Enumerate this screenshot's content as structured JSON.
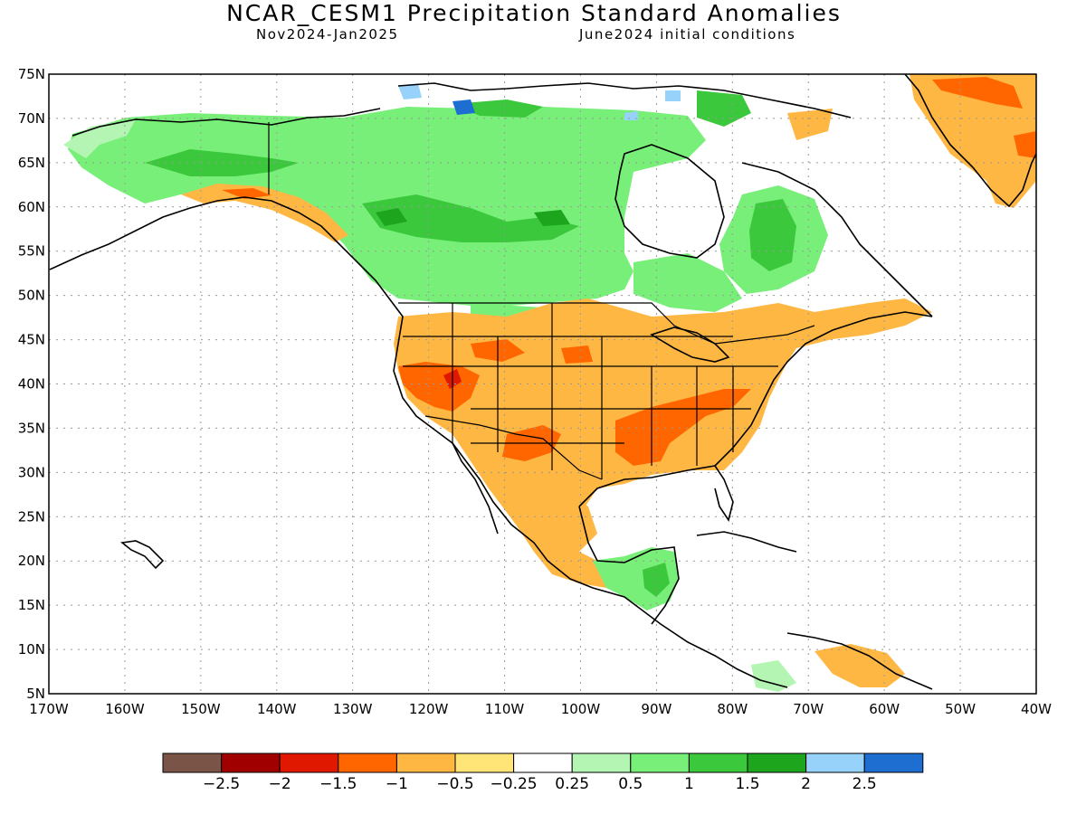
{
  "title": "NCAR_CESM1 Precipitation Standard Anomalies",
  "subtitle_period": "Nov2024-Jan2025",
  "subtitle_init": "June2024 initial conditions",
  "lat_ticks": [
    "75N",
    "70N",
    "65N",
    "60N",
    "55N",
    "50N",
    "45N",
    "40N",
    "35N",
    "30N",
    "25N",
    "20N",
    "15N",
    "10N",
    "5N"
  ],
  "lon_ticks": [
    "170W",
    "160W",
    "150W",
    "140W",
    "130W",
    "120W",
    "110W",
    "100W",
    "90W",
    "80W",
    "70W",
    "60W",
    "50W",
    "40W"
  ],
  "map_extent": {
    "lon": [
      -170,
      -40
    ],
    "lat": [
      5,
      75
    ]
  },
  "colorbar": {
    "labels": [
      "-2.5",
      "-2",
      "-1.5",
      "-1",
      "-0.5",
      "-0.25",
      "0.25",
      "0.5",
      "1",
      "1.5",
      "2",
      "2.5"
    ],
    "colors": [
      "#7a5446",
      "#a00000",
      "#e01800",
      "#ff6600",
      "#ffb744",
      "#ffe478",
      "#ffffff",
      "#b4f5b4",
      "#78ef78",
      "#3cc83c",
      "#1ea51e",
      "#96d2fa",
      "#1e6ed2"
    ]
  },
  "colors": {
    "dry_strong": "#e01800",
    "dry_moderate": "#ff6600",
    "dry_weak": "#ffb744",
    "dry_slight": "#ffe478",
    "wet_slight": "#b4f5b4",
    "wet_weak": "#78ef78",
    "wet_moderate": "#3cc83c",
    "wet_strong": "#1ea51e",
    "wet_blue": "#96d2fa",
    "wet_deepblue": "#1e6ed2"
  },
  "anomaly_regions": [
    {
      "name": "Alaska and northern Canada",
      "category": "wet_weak"
    },
    {
      "name": "Central Canada core",
      "category": "wet_moderate"
    },
    {
      "name": "Labrador / Quebec",
      "category": "wet_moderate"
    },
    {
      "name": "Canadian Arctic islands",
      "category": "wet_blue"
    },
    {
      "name": "Southern Alaska coast",
      "category": "dry_weak"
    },
    {
      "name": "Contiguous United States",
      "category": "dry_weak"
    },
    {
      "name": "Great Basin / Nevada",
      "category": "dry_moderate"
    },
    {
      "name": "Tennessee / Mississippi valley",
      "category": "dry_moderate"
    },
    {
      "name": "Southwest New Mexico",
      "category": "dry_moderate"
    },
    {
      "name": "Mexico",
      "category": "dry_weak"
    },
    {
      "name": "Greenland",
      "category": "dry_weak"
    },
    {
      "name": "Yucatan / Central America",
      "category": "wet_weak"
    },
    {
      "name": "Northern South America",
      "category": "dry_weak"
    }
  ]
}
